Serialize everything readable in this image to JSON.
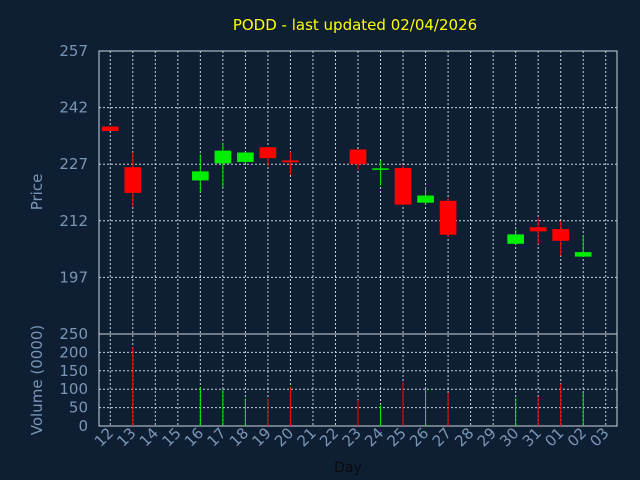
{
  "chart_data": {
    "type": "candlestick",
    "title": "PODD - last updated 02/04/2026",
    "xlabel": "Day",
    "ylabel_price": "Price",
    "ylabel_volume": "Volume (0000)",
    "price_ticks": [
      "257",
      "242",
      "227",
      "212",
      "197"
    ],
    "price_ylim": [
      182,
      257
    ],
    "volume_ticks": [
      "250",
      "200",
      "150",
      "100",
      "50",
      "0"
    ],
    "volume_ylim": [
      0,
      250
    ],
    "x_ticks": [
      "12",
      "13",
      "14",
      "15",
      "16",
      "17",
      "18",
      "19",
      "20",
      "21",
      "22",
      "23",
      "24",
      "25",
      "26",
      "27",
      "28",
      "29",
      "30",
      "31",
      "01",
      "02",
      "03"
    ],
    "up_color": "#00ee00",
    "down_color": "#ff0000",
    "background_color": "#0f1f33",
    "grid": true,
    "candles": [
      {
        "day": "12",
        "open": 237.0,
        "high": 237.0,
        "low": 235.8,
        "close": 235.8,
        "volume": 0
      },
      {
        "day": "13",
        "open": 226.2,
        "high": 230.1,
        "low": 215.8,
        "close": 219.4,
        "volume": 215
      },
      {
        "day": "16",
        "open": 222.7,
        "high": 229.6,
        "low": 219.6,
        "close": 225.1,
        "volume": 105
      },
      {
        "day": "17",
        "open": 227.2,
        "high": 232.7,
        "low": 220.8,
        "close": 230.6,
        "volume": 100
      },
      {
        "day": "18",
        "open": 227.6,
        "high": 230.2,
        "low": 227.1,
        "close": 230.1,
        "volume": 75
      },
      {
        "day": "19",
        "open": 231.5,
        "high": 231.5,
        "low": 226.5,
        "close": 228.6,
        "volume": 75
      },
      {
        "day": "20",
        "open": 228.0,
        "high": 230.4,
        "low": 224.2,
        "close": 227.5,
        "volume": 105
      },
      {
        "day": "23",
        "open": 230.9,
        "high": 230.9,
        "low": 225.5,
        "close": 227.0,
        "volume": 70
      },
      {
        "day": "24",
        "open": 225.9,
        "high": 227.8,
        "low": 221.3,
        "close": 225.9,
        "volume": 55
      },
      {
        "day": "25",
        "open": 226.0,
        "high": 226.8,
        "low": 216.2,
        "close": 216.3,
        "volume": 120
      },
      {
        "day": "26",
        "open": 216.8,
        "high": 220.9,
        "low": 216.4,
        "close": 218.7,
        "volume": 100
      },
      {
        "day": "27",
        "open": 217.3,
        "high": 218.1,
        "low": 207.7,
        "close": 208.3,
        "volume": 90
      },
      {
        "day": "30",
        "open": 205.9,
        "high": 209.6,
        "low": 205.6,
        "close": 208.4,
        "volume": 75
      },
      {
        "day": "31",
        "open": 210.3,
        "high": 212.6,
        "low": 205.9,
        "close": 209.2,
        "volume": 80
      },
      {
        "day": "01",
        "open": 209.8,
        "high": 211.9,
        "low": 202.8,
        "close": 206.7,
        "volume": 115
      },
      {
        "day": "02",
        "open": 202.5,
        "high": 208.3,
        "low": 202.4,
        "close": 203.7,
        "volume": 90
      }
    ]
  }
}
